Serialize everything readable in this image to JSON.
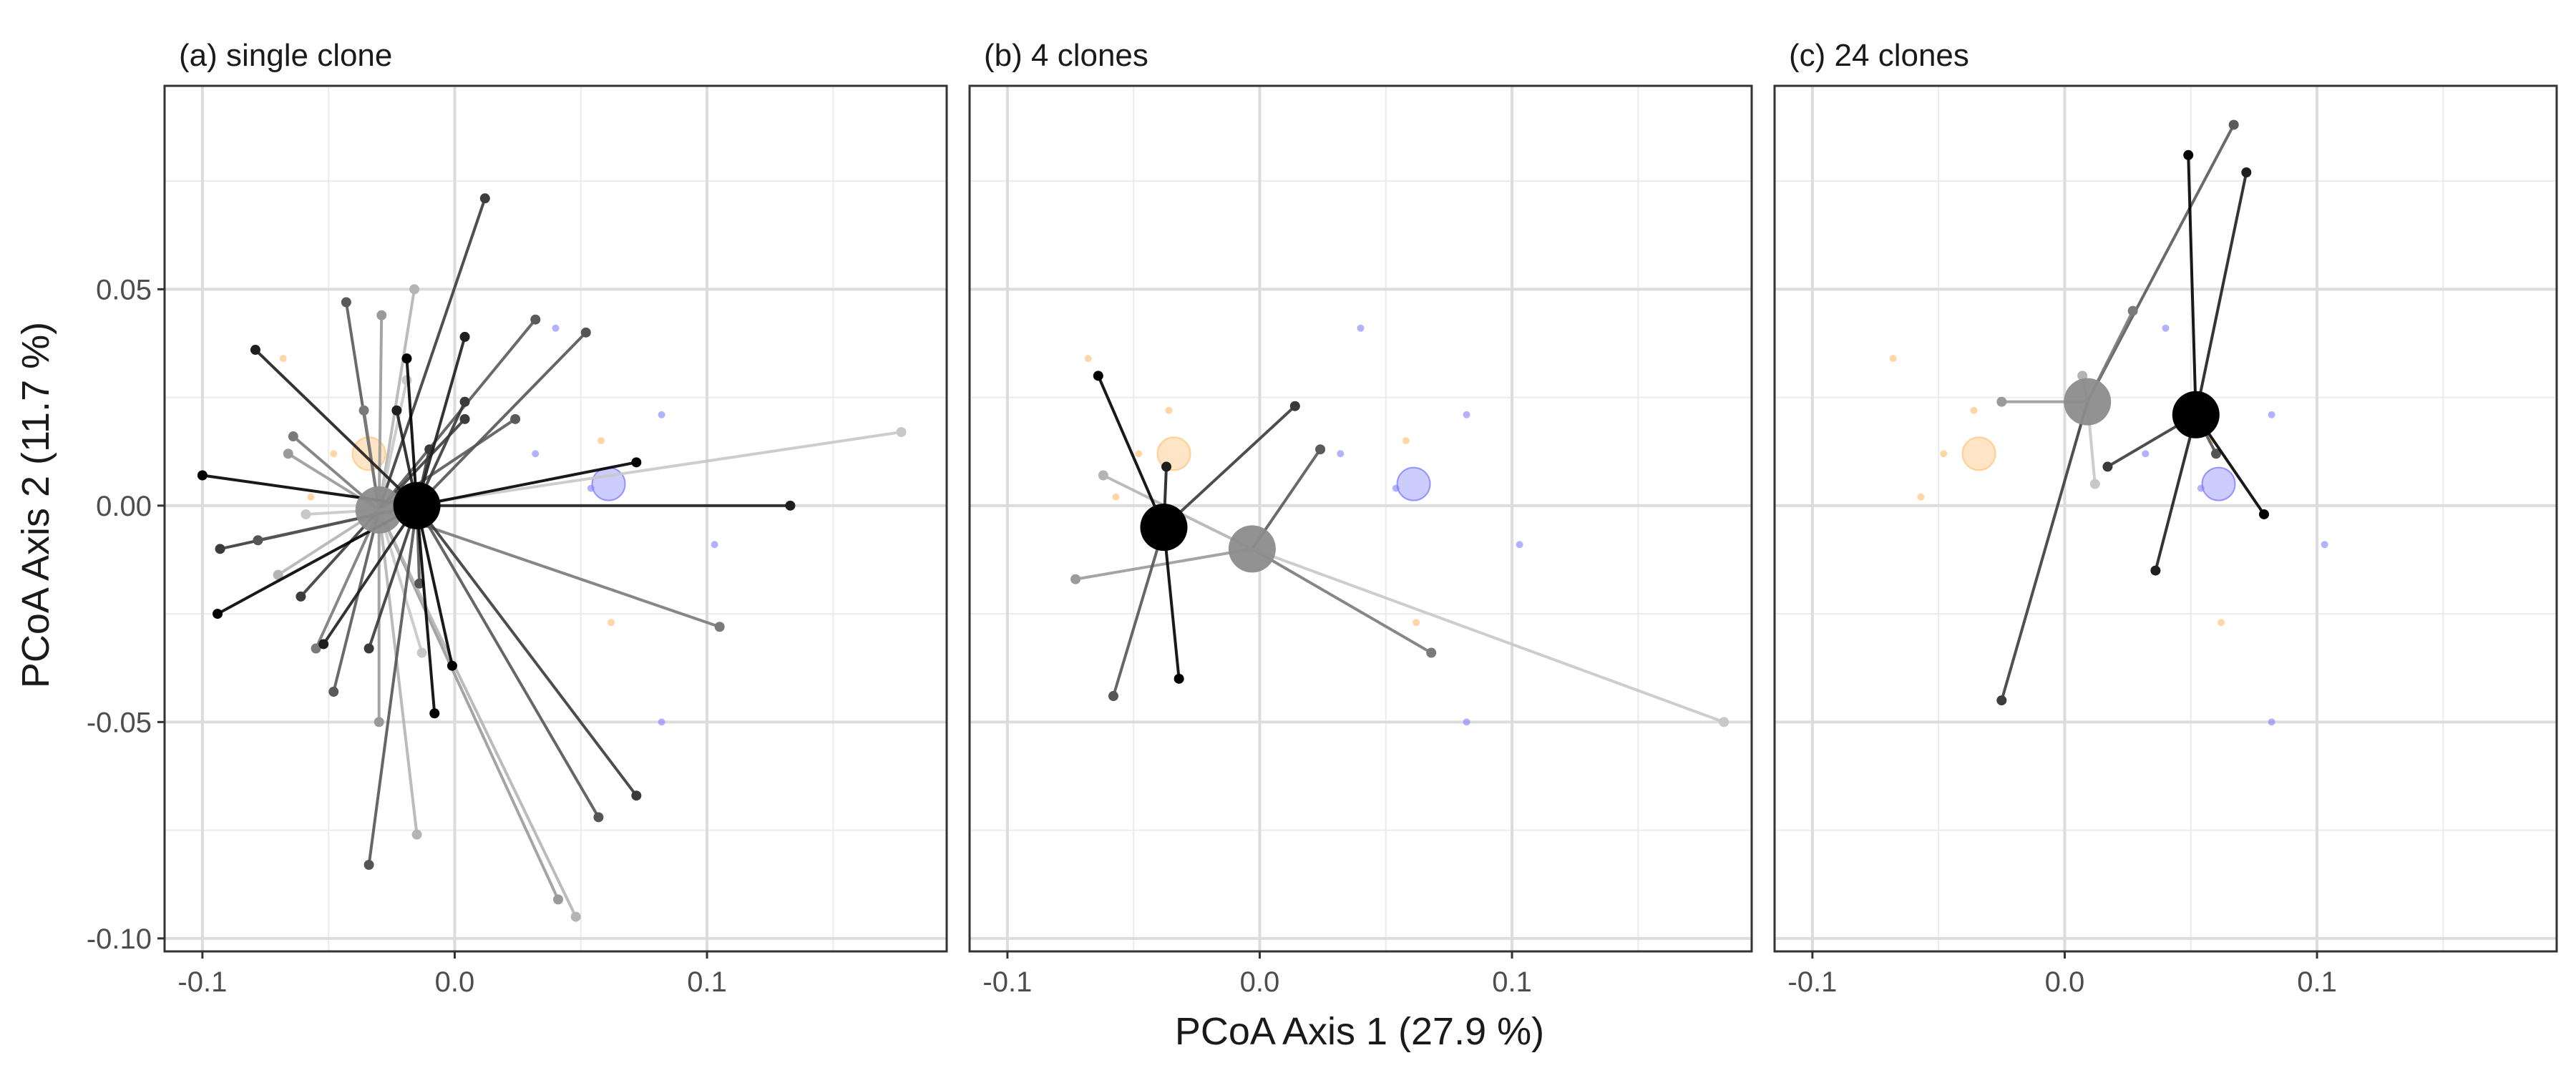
{
  "chart_data": {
    "type": "scatter",
    "xlabel": "PCoA Axis 1 (27.9 %)",
    "ylabel": "PCoA Axis 2 (11.7 %)",
    "xlim": [
      -0.115,
      0.195
    ],
    "ylim": [
      -0.103,
      0.097
    ],
    "x_ticks": [
      -0.1,
      0.0,
      0.1
    ],
    "y_ticks": [
      -0.1,
      -0.05,
      0.0,
      0.05
    ],
    "x_tick_labels": [
      "-0.1",
      "0.0",
      "0.1"
    ],
    "y_tick_labels": [
      "-0.10",
      "-0.05",
      "0.00",
      "0.05"
    ],
    "grid": true,
    "colors": {
      "black_group": "#000000",
      "grey_group": "#8c8c8c",
      "orange_group": "#ffc680",
      "blue_group": "#7f7fff"
    },
    "background_points": {
      "orange": [
        [
          -0.068,
          0.034
        ],
        [
          -0.057,
          0.002
        ],
        [
          -0.036,
          0.022
        ],
        [
          -0.048,
          0.012
        ],
        [
          0.058,
          0.015
        ],
        [
          0.062,
          -0.027
        ]
      ],
      "orange_centroid": [
        -0.034,
        0.012
      ],
      "blue": [
        [
          0.04,
          0.041
        ],
        [
          0.032,
          0.012
        ],
        [
          0.054,
          0.004
        ],
        [
          0.082,
          0.021
        ],
        [
          0.103,
          -0.009
        ],
        [
          0.082,
          -0.05
        ]
      ],
      "blue_centroid": [
        0.061,
        0.005
      ]
    },
    "panels": [
      {
        "title": "(a) single clone",
        "groups": [
          {
            "color": "grey",
            "centroid": [
              -0.03,
              -0.001
            ],
            "points": [
              [
                -0.043,
                0.047
              ],
              [
                -0.036,
                0.022
              ],
              [
                -0.029,
                0.044
              ],
              [
                -0.016,
                0.05
              ],
              [
                -0.019,
                0.029
              ],
              [
                0.012,
                0.071
              ],
              [
                0.032,
                0.043
              ],
              [
                -0.064,
                0.016
              ],
              [
                -0.066,
                0.012
              ],
              [
                -0.07,
                -0.016
              ],
              [
                -0.059,
                -0.002
              ],
              [
                -0.061,
                -0.021
              ],
              [
                -0.048,
                -0.043
              ],
              [
                -0.055,
                -0.033
              ],
              [
                -0.03,
                -0.05
              ],
              [
                -0.015,
                -0.076
              ],
              [
                -0.013,
                -0.034
              ],
              [
                0.004,
                0.02
              ],
              [
                0.024,
                0.02
              ],
              [
                0.105,
                -0.028
              ],
              [
                0.041,
                -0.091
              ],
              [
                0.048,
                -0.095
              ],
              [
                0.177,
                0.017
              ]
            ]
          },
          {
            "color": "black",
            "centroid": [
              -0.015,
              0.0
            ],
            "points": [
              [
                -0.1,
                0.007
              ],
              [
                -0.079,
                0.036
              ],
              [
                -0.093,
                -0.01
              ],
              [
                -0.078,
                -0.008
              ],
              [
                -0.094,
                -0.025
              ],
              [
                -0.052,
                -0.032
              ],
              [
                -0.034,
                -0.033
              ],
              [
                -0.034,
                -0.083
              ],
              [
                -0.019,
                0.034
              ],
              [
                -0.023,
                0.022
              ],
              [
                -0.01,
                0.013
              ],
              [
                -0.014,
                -0.018
              ],
              [
                -0.008,
                -0.048
              ],
              [
                0.004,
                0.039
              ],
              [
                0.004,
                0.024
              ],
              [
                0.052,
                0.04
              ],
              [
                0.072,
                0.01
              ],
              [
                0.133,
                0.0
              ],
              [
                0.072,
                -0.067
              ],
              [
                0.057,
                -0.072
              ],
              [
                -0.001,
                -0.037
              ]
            ]
          }
        ]
      },
      {
        "title": "(b) 4 clones",
        "groups": [
          {
            "color": "grey",
            "centroid": [
              -0.003,
              -0.01
            ],
            "points": [
              [
                0.024,
                0.013
              ],
              [
                0.068,
                -0.034
              ],
              [
                -0.073,
                -0.017
              ],
              [
                -0.062,
                0.007
              ],
              [
                0.184,
                -0.05
              ]
            ]
          },
          {
            "color": "black",
            "centroid": [
              -0.038,
              -0.005
            ],
            "points": [
              [
                -0.064,
                0.03
              ],
              [
                -0.037,
                0.009
              ],
              [
                0.014,
                0.023
              ],
              [
                -0.058,
                -0.044
              ],
              [
                -0.032,
                -0.04
              ]
            ]
          }
        ]
      },
      {
        "title": "(c) 24 clones",
        "groups": [
          {
            "color": "grey",
            "centroid": [
              0.009,
              0.024
            ],
            "points": [
              [
                0.067,
                0.088
              ],
              [
                0.027,
                0.045
              ],
              [
                -0.025,
                0.024
              ],
              [
                0.007,
                0.03
              ],
              [
                0.012,
                0.005
              ],
              [
                -0.025,
                -0.045
              ]
            ]
          },
          {
            "color": "black",
            "centroid": [
              0.052,
              0.021
            ],
            "points": [
              [
                0.049,
                0.081
              ],
              [
                0.072,
                0.077
              ],
              [
                0.017,
                0.009
              ],
              [
                0.06,
                0.012
              ],
              [
                0.079,
                -0.002
              ],
              [
                0.036,
                -0.015
              ]
            ]
          }
        ]
      }
    ]
  }
}
